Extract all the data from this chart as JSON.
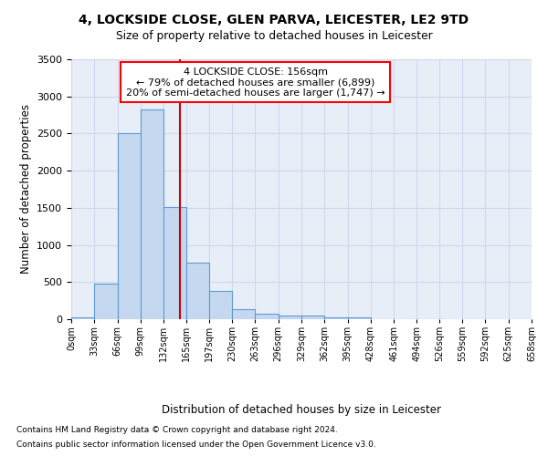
{
  "title_line1": "4, LOCKSIDE CLOSE, GLEN PARVA, LEICESTER, LE2 9TD",
  "title_line2": "Size of property relative to detached houses in Leicester",
  "xlabel": "Distribution of detached houses by size in Leicester",
  "ylabel": "Number of detached properties",
  "bin_edges": [
    0,
    33,
    66,
    99,
    132,
    165,
    197,
    230,
    263,
    296,
    329,
    362,
    395,
    428,
    461,
    494,
    526,
    559,
    592,
    625,
    658
  ],
  "bar_heights": [
    25,
    480,
    2510,
    2820,
    1510,
    760,
    380,
    135,
    70,
    55,
    55,
    30,
    20,
    5,
    5,
    0,
    0,
    0,
    0,
    0
  ],
  "bar_color": "#c5d8f0",
  "bar_edge_color": "#5b9bd5",
  "grid_color": "#d0d8e8",
  "background_color": "#e8eef8",
  "vline_x": 156,
  "vline_color": "#cc0000",
  "annotation_text": "4 LOCKSIDE CLOSE: 156sqm\n← 79% of detached houses are smaller (6,899)\n20% of semi-detached houses are larger (1,747) →",
  "ylim": [
    0,
    3500
  ],
  "yticks": [
    0,
    500,
    1000,
    1500,
    2000,
    2500,
    3000,
    3500
  ],
  "footer_line1": "Contains HM Land Registry data © Crown copyright and database right 2024.",
  "footer_line2": "Contains public sector information licensed under the Open Government Licence v3.0."
}
